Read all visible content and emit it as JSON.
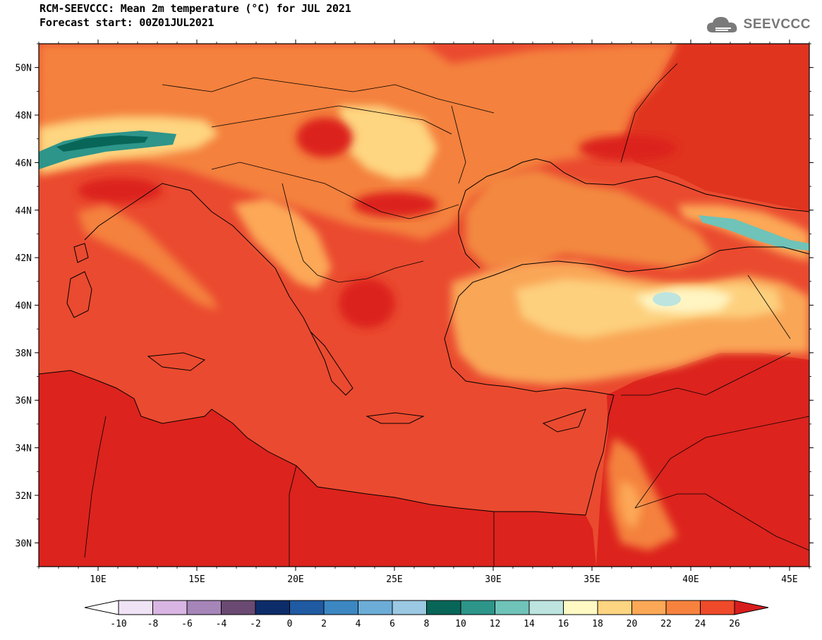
{
  "header": {
    "title": "RCM-SEEVCCC: Mean 2m temperature (°C) for JUL 2021",
    "subtitle": "Forecast start: 00Z01JUL2021",
    "logo_text": "SEEVCCC",
    "logo_icon": "cloud-icon"
  },
  "map": {
    "lon_range": [
      7,
      46
    ],
    "lat_range": [
      29,
      51
    ],
    "lon_ticks": [
      "10E",
      "15E",
      "20E",
      "25E",
      "30E",
      "35E",
      "40E",
      "45E"
    ],
    "lat_ticks": [
      "30N",
      "32N",
      "34N",
      "36N",
      "38N",
      "40N",
      "42N",
      "44N",
      "46N",
      "48N",
      "50N"
    ],
    "sea_color": "#ea4a2f",
    "land_color": "#e0251f"
  },
  "colorbar": {
    "labels": [
      "-10",
      "-8",
      "-6",
      "-4",
      "-2",
      "0",
      "2",
      "4",
      "6",
      "8",
      "10",
      "12",
      "14",
      "16",
      "18",
      "20",
      "22",
      "24",
      "26"
    ],
    "colors": [
      "#ffffff",
      "#efe3f5",
      "#d9b5e3",
      "#a685b9",
      "#6a4a72",
      "#0d2c6a",
      "#1f5aa2",
      "#3c87c2",
      "#6cadd7",
      "#9bc8e2",
      "#086659",
      "#2d958a",
      "#6fc3b8",
      "#bde4de",
      "#fff9c4",
      "#fed580",
      "#fca856",
      "#f7823e",
      "#ef4a2a",
      "#d81d1e"
    ]
  }
}
